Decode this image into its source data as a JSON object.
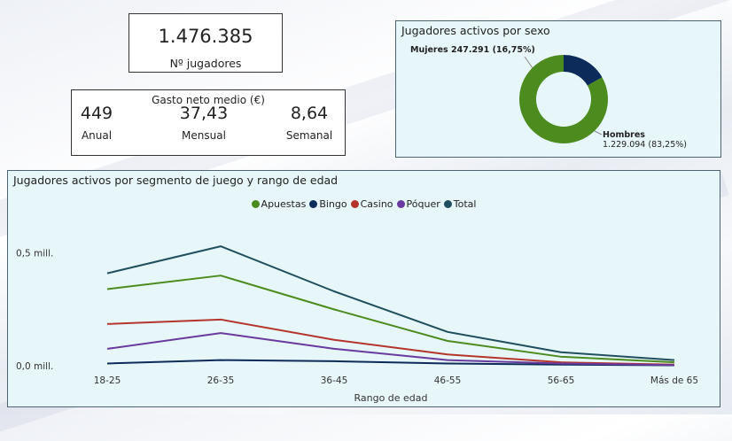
{
  "kpi_players": {
    "value": "1.476.385",
    "label": "Nº jugadores"
  },
  "spend": {
    "title": "Gasto neto medio (€)",
    "columns": [
      {
        "value": "449",
        "label": "Anual"
      },
      {
        "value": "37,43",
        "label": "Mensual"
      },
      {
        "value": "8,64",
        "label": "Semanal"
      }
    ]
  },
  "donut": {
    "title": "Jugadores activos por sexo",
    "slices": [
      {
        "name": "Mujeres",
        "label": "Mujeres 247.291 (16,75%)",
        "value": 247291,
        "color": "#0d2b5a"
      },
      {
        "name": "Hombres",
        "label_line1": "Hombres",
        "label_line2": "1.229.094 (83,25%)",
        "value": 1229094,
        "color": "#4c8b1e"
      }
    ]
  },
  "line_chart": {
    "title": "Jugadores activos por segmento de juego y rango de edad",
    "xlabel": "Rango de edad",
    "y_ticks": [
      {
        "value": 0.5,
        "label": "0,5 mill."
      },
      {
        "value": 0.0,
        "label": "0,0 mill."
      }
    ]
  },
  "chart_data": {
    "type": "line",
    "title": "Jugadores activos por segmento de juego y rango de edad",
    "xlabel": "Rango de edad",
    "ylabel": "",
    "categories": [
      "18-25",
      "26-35",
      "36-45",
      "46-55",
      "56-65",
      "Más de 65"
    ],
    "ylim": [
      0,
      0.55
    ],
    "series": [
      {
        "name": "Apuestas",
        "color": "#4c8b1e",
        "values": [
          0.34,
          0.4,
          0.25,
          0.11,
          0.04,
          0.015
        ]
      },
      {
        "name": "Bingo",
        "color": "#0d2b5a",
        "values": [
          0.01,
          0.025,
          0.02,
          0.01,
          0.005,
          0.002
        ]
      },
      {
        "name": "Casino",
        "color": "#b5352c",
        "values": [
          0.185,
          0.205,
          0.115,
          0.05,
          0.015,
          0.005
        ]
      },
      {
        "name": "Póquer",
        "color": "#6a3b9e",
        "values": [
          0.075,
          0.145,
          0.075,
          0.025,
          0.01,
          0.003
        ]
      },
      {
        "name": "Total",
        "color": "#1f4f5f",
        "values": [
          0.41,
          0.53,
          0.33,
          0.15,
          0.06,
          0.025
        ]
      }
    ]
  }
}
